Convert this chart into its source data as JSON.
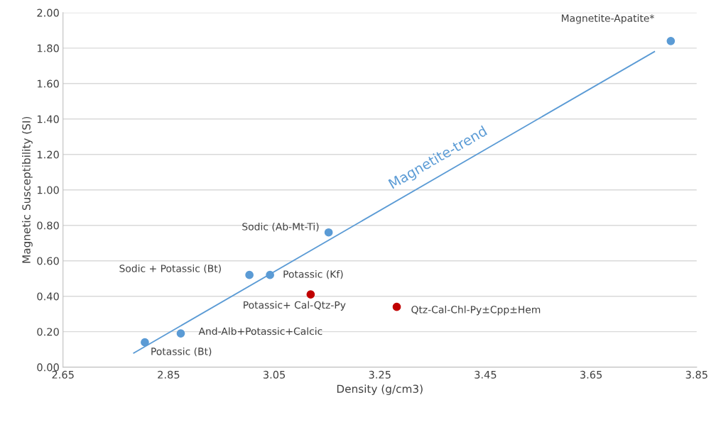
{
  "chart_data": {
    "type": "scatter",
    "xlabel": "Density (g/cm3)",
    "ylabel": "Magnetic Susceptibility (SI)",
    "xlim": [
      2.65,
      3.85
    ],
    "xticks": [
      2.65,
      2.85,
      3.05,
      3.25,
      3.45,
      3.65,
      3.85
    ],
    "ylim": [
      0,
      2
    ],
    "yticks": [
      {
        "value": 0,
        "label": "0.00"
      },
      {
        "value": 0.2,
        "label": "0.20"
      },
      {
        "value": 0.4,
        "label": "0.40"
      },
      {
        "value": 0.6,
        "label": "0.60"
      },
      {
        "value": 0.8,
        "label": "0.80"
      },
      {
        "value": 1.0,
        "label": "1.00"
      },
      {
        "value": 1.2,
        "label": "1.20"
      },
      {
        "value": 1.4,
        "label": "1.40"
      },
      {
        "value": 1.6,
        "label": "1.60"
      },
      {
        "value": 1.8,
        "label": "1.80"
      },
      {
        "value": 2.0,
        "label": "2.00"
      }
    ],
    "grid": "y",
    "series": [
      {
        "marker": "circle",
        "color": "#5b9bd5",
        "x": [
          2.805,
          2.873,
          3.003,
          3.042,
          3.153,
          3.801
        ],
        "values": [
          0.14,
          0.19,
          0.52,
          0.52,
          0.76,
          1.84
        ]
      },
      {
        "marker": "circle",
        "color": "#c00000",
        "x": [
          3.119,
          3.282
        ],
        "values": [
          0.41,
          0.34
        ]
      },
      {
        "type": "line",
        "name": "Magnetite-trend",
        "color": "#5b9bd5",
        "x": [
          2.784,
          3.77
        ],
        "values": [
          0.08,
          1.78
        ]
      }
    ],
    "annotations": [
      {
        "text": "Magnetite-Apatite*",
        "x": 3.801,
        "y": 1.84
      },
      {
        "text": "Sodic (Ab-Mt-Ti)",
        "x": 3.153,
        "y": 0.76
      },
      {
        "text": "Sodic + Potassic (Bt)",
        "x": 3.003,
        "y": 0.52
      },
      {
        "text": "Potassic (Kf)",
        "x": 3.042,
        "y": 0.52
      },
      {
        "text": "Potassic+ Cal-Qtz-Py",
        "x": 3.119,
        "y": 0.41
      },
      {
        "text": "Qtz-Cal-Chl-Py±Cpp±Hem",
        "x": 3.282,
        "y": 0.34
      },
      {
        "text": "And-Alb+Potassic+Calcic",
        "x": 2.873,
        "y": 0.19
      },
      {
        "text": "Potassic (Bt)",
        "x": 2.805,
        "y": 0.14
      }
    ]
  }
}
